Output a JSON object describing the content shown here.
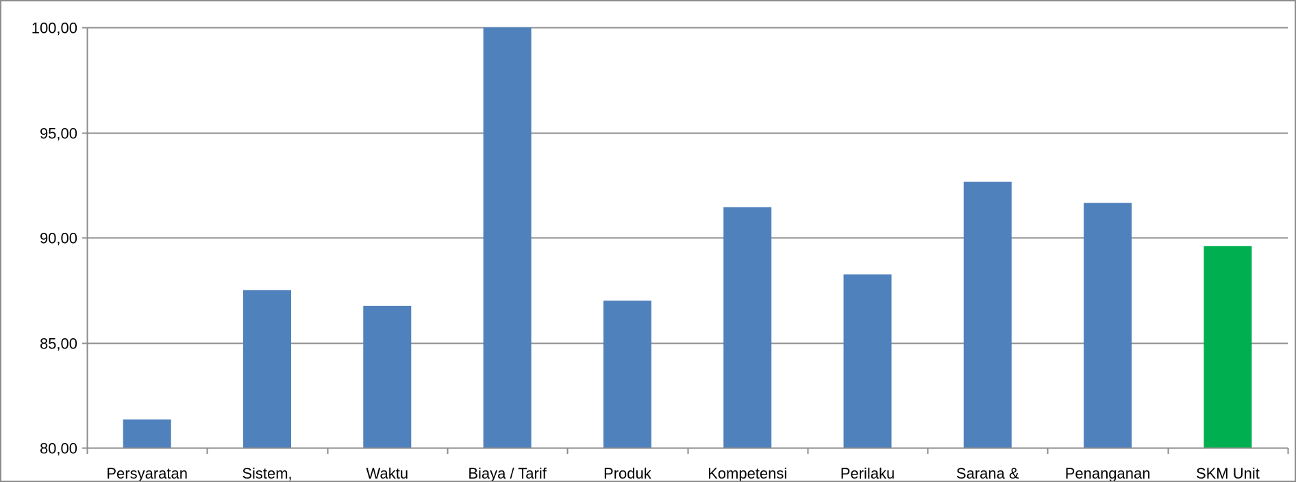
{
  "chart_data": {
    "type": "bar",
    "title": "",
    "xlabel": "",
    "ylabel": "",
    "ylim": [
      80,
      100
    ],
    "yticks": [
      "80,00",
      "85,00",
      "90,00",
      "95,00",
      "100,00"
    ],
    "grid": true,
    "legend": "none",
    "categories": [
      "Persyaratan",
      "Sistem,",
      "Waktu",
      "Biaya / Tarif",
      "Produk",
      "Kompetensi",
      "Perilaku",
      "Sarana &",
      "Penanganan",
      "SKM Unit"
    ],
    "values": [
      81.35,
      87.5,
      86.75,
      100.0,
      87.0,
      91.45,
      88.25,
      92.65,
      91.65,
      89.6
    ],
    "colors": [
      "#4f81bd",
      "#4f81bd",
      "#4f81bd",
      "#4f81bd",
      "#4f81bd",
      "#4f81bd",
      "#4f81bd",
      "#4f81bd",
      "#4f81bd",
      "#00b050"
    ]
  }
}
